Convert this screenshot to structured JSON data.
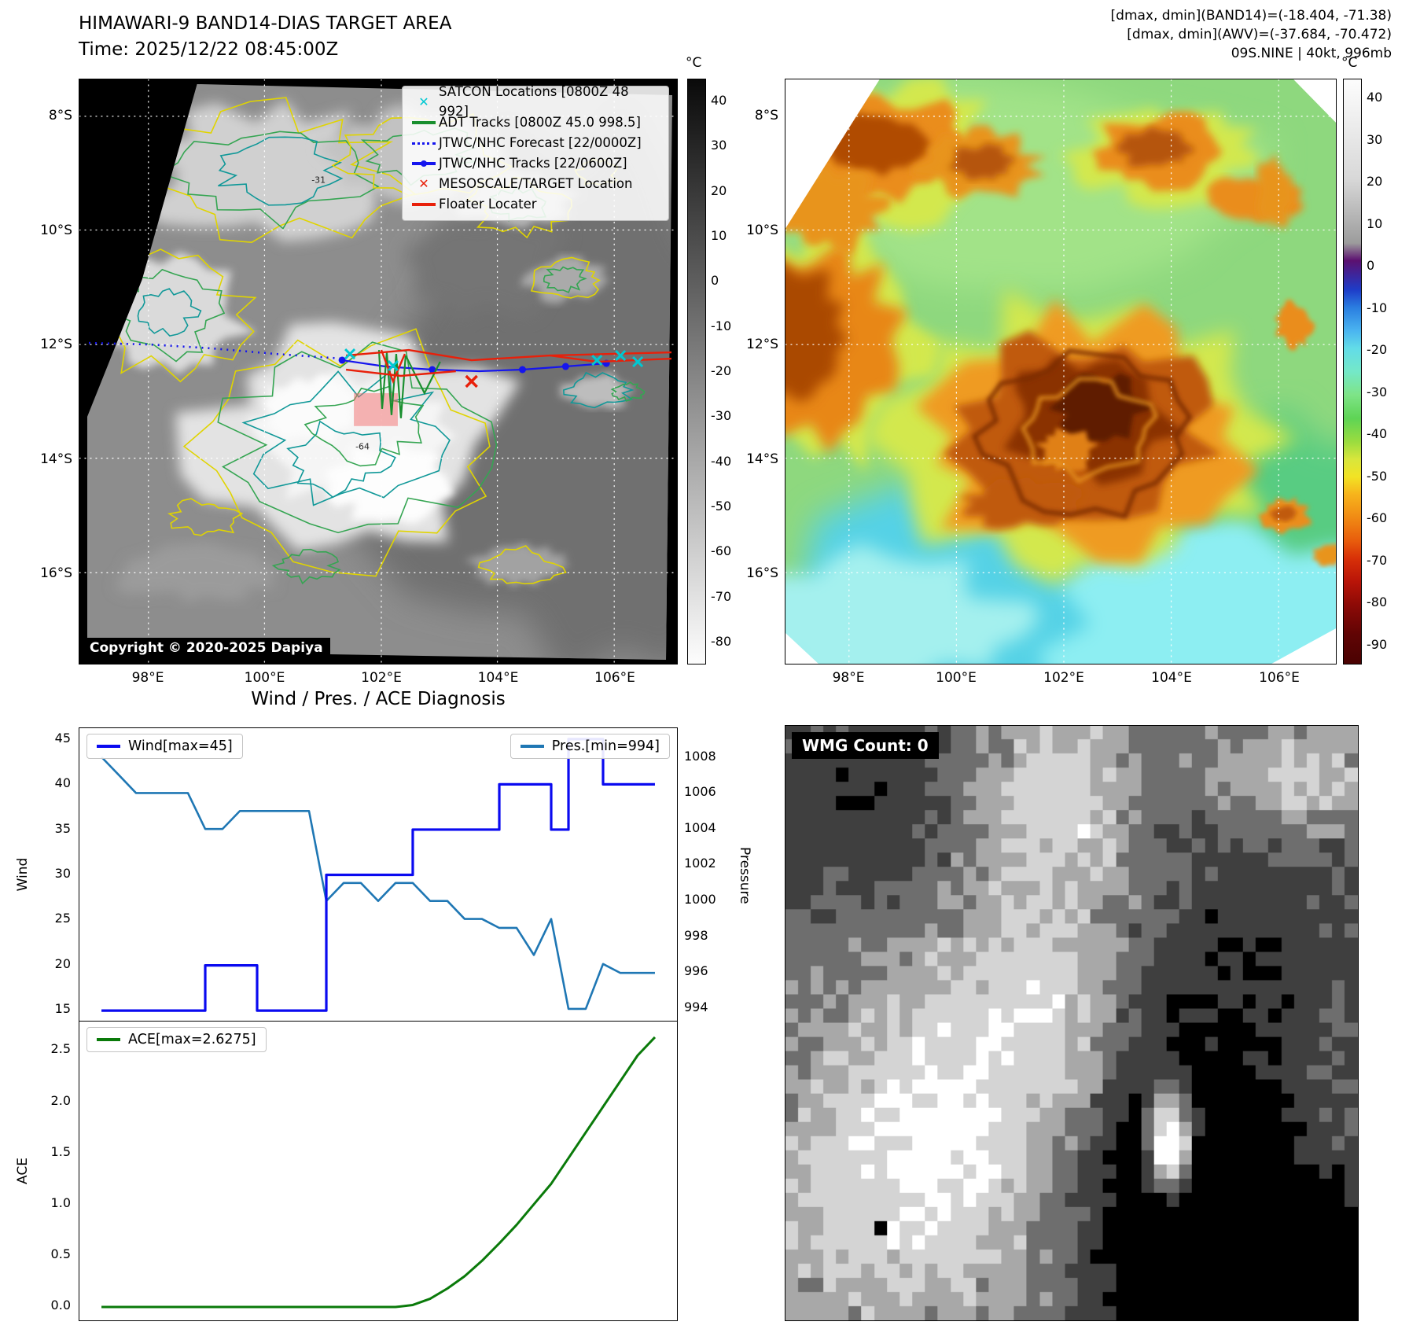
{
  "band14_panel": {
    "title": "HIMAWARI-9 BAND14-DIAS TARGET AREA",
    "subtitle": "Time: 2025/12/22 08:45:00Z",
    "copyright": "Copyright © 2020-2025 Dapiya",
    "legend": [
      {
        "label": "SATCON Locations [0800Z 48 992]",
        "marker": "x",
        "color": "#00c8d2"
      },
      {
        "label": "ADT Tracks [0800Z 45.0 998.5]",
        "marker": "line",
        "color": "#1a8f2f"
      },
      {
        "label": "JTWC/NHC Forecast [22/0000Z]",
        "marker": "dotted-line",
        "color": "#1515ee"
      },
      {
        "label": "JTWC/NHC Tracks [22/0600Z]",
        "marker": "line-dot",
        "color": "#1515ee"
      },
      {
        "label": "MESOSCALE/TARGET Location",
        "marker": "x",
        "color": "#e8200a"
      },
      {
        "label": "Floater Locater",
        "marker": "line",
        "color": "#e8200a"
      }
    ],
    "lat_ticks": [
      "8°S",
      "10°S",
      "12°S",
      "14°S",
      "16°S"
    ],
    "lon_ticks": [
      "98°E",
      "100°E",
      "102°E",
      "104°E",
      "106°E"
    ],
    "colorbar": {
      "unit": "°C",
      "ticks": [
        "40",
        "30",
        "20",
        "10",
        "0",
        "-10",
        "-20",
        "-30",
        "-40",
        "-50",
        "-60",
        "-70",
        "-80"
      ]
    },
    "contour_labels": [
      "-31",
      "-64"
    ]
  },
  "awv_panel": {
    "header_lines": [
      "[dmax, dmin](BAND14)=(-18.404, -71.38)",
      "[dmax, dmin](AWV)=(-37.684, -70.472)",
      "09S.NINE | 40kt, 996mb"
    ],
    "lat_ticks": [
      "8°S",
      "10°S",
      "12°S",
      "14°S",
      "16°S"
    ],
    "lon_ticks": [
      "98°E",
      "100°E",
      "102°E",
      "104°E",
      "106°E"
    ],
    "colorbar": {
      "unit": "°C",
      "ticks": [
        "40",
        "30",
        "20",
        "10",
        "0",
        "-10",
        "-20",
        "-30",
        "-40",
        "-50",
        "-60",
        "-70",
        "-80",
        "-90"
      ]
    }
  },
  "diagnosis": {
    "title": "Wind / Pres. / ACE Diagnosis"
  },
  "wmg_panel": {
    "count_label": "WMG Count: 0"
  },
  "chart_data": [
    {
      "type": "line",
      "title": "Wind / Pres. / ACE Diagnosis",
      "x": [
        0,
        1,
        2,
        3,
        4,
        5,
        6,
        7,
        8,
        9,
        10,
        11,
        12,
        13,
        14,
        15,
        16,
        17,
        18,
        19,
        20,
        21,
        22,
        23,
        24,
        25,
        26,
        27,
        28,
        29,
        30,
        31,
        32
      ],
      "series": [
        {
          "name": "Wind[max=45]",
          "axis": "left",
          "color": "#0a0af0",
          "values": [
            15,
            15,
            15,
            15,
            15,
            15,
            20,
            20,
            20,
            15,
            15,
            15,
            15,
            30,
            30,
            30,
            30,
            30,
            35,
            35,
            35,
            35,
            35,
            40,
            40,
            40,
            35,
            45,
            45,
            40,
            40,
            40,
            40
          ]
        },
        {
          "name": "Pres.[min=994]",
          "axis": "right",
          "color": "#1f77b4",
          "values": [
            1008,
            1007,
            1006,
            1006,
            1006,
            1006,
            1004,
            1004,
            1005,
            1005,
            1005,
            1005,
            1005,
            1000,
            1001,
            1001,
            1000,
            1001,
            1001,
            1000,
            1000,
            999,
            999,
            998.5,
            998.5,
            997,
            999,
            994,
            994,
            996.5,
            996,
            996,
            996
          ]
        }
      ],
      "ylabel_left": "Wind",
      "ylabel_right": "Pressure",
      "yticks_left": [
        15,
        20,
        25,
        30,
        35,
        40,
        45
      ],
      "yticks_right": [
        994,
        996,
        998,
        1000,
        1002,
        1004,
        1006,
        1008
      ],
      "ylim_left": [
        13.8,
        46.2
      ],
      "ylim_right": [
        993.3,
        1009.6
      ],
      "legend_position": "top"
    },
    {
      "type": "line",
      "x": [
        0,
        1,
        2,
        3,
        4,
        5,
        6,
        7,
        8,
        9,
        10,
        11,
        12,
        13,
        14,
        15,
        16,
        17,
        18,
        19,
        20,
        21,
        22,
        23,
        24,
        25,
        26,
        27,
        28,
        29,
        30,
        31,
        32
      ],
      "series": [
        {
          "name": "ACE[max=2.6275]",
          "color": "#0a7a0a",
          "values": [
            0,
            0,
            0,
            0,
            0,
            0,
            0,
            0,
            0,
            0,
            0,
            0,
            0,
            0,
            0,
            0,
            0,
            0,
            0.02,
            0.08,
            0.18,
            0.3,
            0.45,
            0.62,
            0.8,
            1.0,
            1.2,
            1.45,
            1.7,
            1.95,
            2.2,
            2.45,
            2.6275
          ]
        }
      ],
      "ylabel": "ACE",
      "yticks": [
        "0.0",
        "0.5",
        "1.0",
        "1.5",
        "2.0",
        "2.5"
      ],
      "ylim": [
        -0.13,
        2.78
      ]
    }
  ]
}
